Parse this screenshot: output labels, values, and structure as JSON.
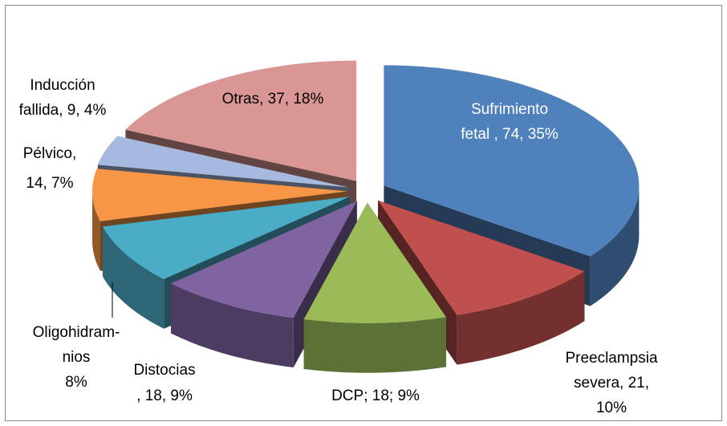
{
  "chart_data": {
    "type": "pie",
    "values": [
      35,
      10,
      9,
      9,
      8,
      7,
      4,
      18
    ],
    "value_labels": [
      [
        "Sufrimiento",
        "fetal , 74, 35%"
      ],
      [
        "Preeclampsia",
        "severa, 21,",
        "10%"
      ],
      [
        "DCP; 18; 9%"
      ],
      [
        "Distocias",
        ", 18, 9%"
      ],
      [
        "Oligohidram-",
        "nios",
        "8%"
      ],
      [
        "Pélvico,",
        "14, 7%"
      ],
      [
        "Inducción",
        "fallida, 9, 4%"
      ],
      [
        "Otras, 37, 18%"
      ]
    ],
    "colors": [
      "#4f81bd",
      "#c0504d",
      "#9bbb59",
      "#8064a2",
      "#4bacc6",
      "#f79646",
      "#a6b9de",
      "#d99694"
    ],
    "exploded": true,
    "three_d": true
  }
}
